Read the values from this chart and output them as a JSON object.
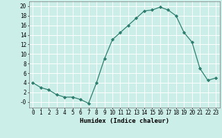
{
  "x": [
    0,
    1,
    2,
    3,
    4,
    5,
    6,
    7,
    8,
    9,
    10,
    11,
    12,
    13,
    14,
    15,
    16,
    17,
    18,
    19,
    20,
    21,
    22,
    23
  ],
  "y": [
    4,
    3,
    2.5,
    1.5,
    1,
    1,
    0.5,
    -0.3,
    4,
    9,
    13,
    14.5,
    16,
    17.5,
    19,
    19.2,
    19.8,
    19.2,
    18,
    14.5,
    12.5,
    7,
    4.5,
    5
  ],
  "line_color": "#2d7d6e",
  "marker": "D",
  "marker_size": 2.2,
  "bg_color": "#cceee8",
  "grid_color": "#ffffff",
  "xlabel": "Humidex (Indice chaleur)",
  "xlabel_fontsize": 6.5,
  "tick_fontsize": 5.5,
  "ylim": [
    -1.2,
    21
  ],
  "xlim": [
    -0.5,
    23.5
  ],
  "yticks": [
    0,
    2,
    4,
    6,
    8,
    10,
    12,
    14,
    16,
    18,
    20
  ],
  "ytick_labels": [
    "-0",
    "2",
    "4",
    "6",
    "8",
    "10",
    "12",
    "14",
    "16",
    "18",
    "20"
  ],
  "xticks": [
    0,
    1,
    2,
    3,
    4,
    5,
    6,
    7,
    8,
    9,
    10,
    11,
    12,
    13,
    14,
    15,
    16,
    17,
    18,
    19,
    20,
    21,
    22,
    23
  ]
}
